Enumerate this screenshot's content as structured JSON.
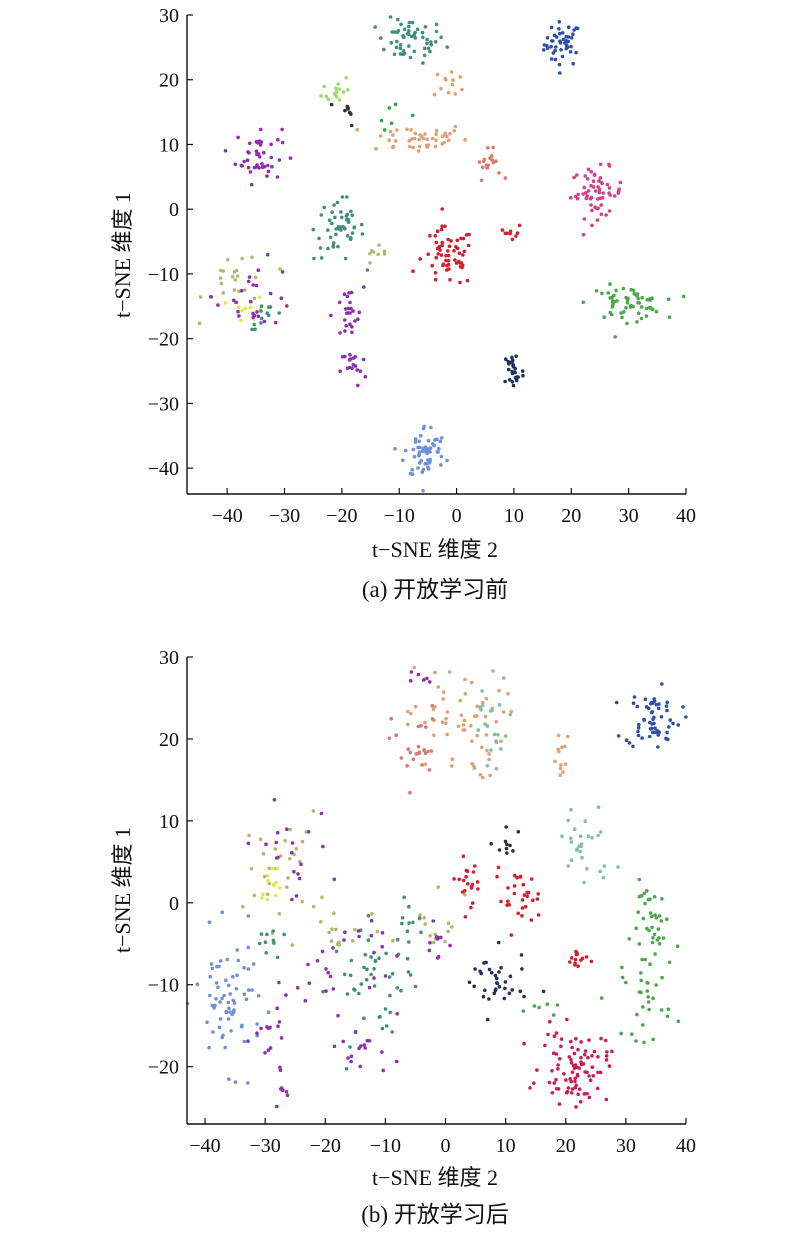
{
  "colors": {
    "red": "#d4202e",
    "crimson": "#cc1d52",
    "pink": "#d33f8e",
    "purple": "#8e2fae",
    "blue": "#2f4fa6",
    "cornflower": "#6f8fd9",
    "navy": "#1f2f5f",
    "green": "#4aa84a",
    "teal": "#3f8f7a",
    "mint": "#7fc0a0",
    "orange": "#e0a070",
    "salmon": "#d97a6a",
    "olive": "#b6b66a",
    "lightgreen": "#9ed86a",
    "yellow": "#e6e645",
    "dark": "#303030",
    "brightgreen": "#23b03a"
  },
  "chart_data": [
    {
      "type": "scatter",
      "caption": "(a) 开放学习前",
      "xlabel": "t−SNE 维度 2",
      "ylabel": "t−SNE 维度 1",
      "xlim": [
        -47,
        40
      ],
      "ylim": [
        -44,
        30
      ],
      "xticks": [
        "−40",
        "−30",
        "−20",
        "−10",
        "0",
        "10",
        "20",
        "30",
        "40"
      ],
      "yticks": [
        "30",
        "20",
        "10",
        "0",
        "−10",
        "−20",
        "−30",
        "−40"
      ],
      "xtick_values": [
        -40,
        -30,
        -20,
        -10,
        0,
        10,
        20,
        30,
        40
      ],
      "ytick_values": [
        30,
        20,
        10,
        0,
        -10,
        -20,
        -30,
        -40
      ],
      "clusters": [
        {
          "color": "blue",
          "cx": 18.5,
          "cy": 25.5,
          "sx": 1.6,
          "sy": 1.7,
          "n": 45
        },
        {
          "color": "teal",
          "cx": -8,
          "cy": 26,
          "sx": 3.0,
          "sy": 1.7,
          "n": 55
        },
        {
          "color": "orange",
          "cx": -1,
          "cy": 19.5,
          "sx": 1.5,
          "sy": 1.2,
          "n": 12
        },
        {
          "color": "orange",
          "cx": -7,
          "cy": 11,
          "sx": 4.5,
          "sy": 1.2,
          "n": 45
        },
        {
          "color": "lightgreen",
          "cx": -21,
          "cy": 18.5,
          "sx": 1.2,
          "sy": 1.2,
          "n": 15
        },
        {
          "color": "dark",
          "cx": -19,
          "cy": 15,
          "sx": 0.8,
          "sy": 1.0,
          "n": 8
        },
        {
          "color": "brightgreen",
          "cx": -11,
          "cy": 15,
          "sx": 1.5,
          "sy": 1.3,
          "n": 6
        },
        {
          "color": "salmon",
          "cx": 5.5,
          "cy": 7,
          "sx": 1.1,
          "sy": 1.1,
          "n": 18
        },
        {
          "color": "purple",
          "cx": -34.5,
          "cy": 8.5,
          "sx": 2.0,
          "sy": 2.2,
          "n": 45
        },
        {
          "color": "pink",
          "cx": 24.5,
          "cy": 2.5,
          "sx": 2.3,
          "sy": 1.9,
          "n": 60
        },
        {
          "color": "teal",
          "cx": -20.5,
          "cy": -3,
          "sx": 2.2,
          "sy": 2.5,
          "n": 50
        },
        {
          "color": "red",
          "cx": -1.5,
          "cy": -7.5,
          "sx": 2.3,
          "sy": 2.3,
          "n": 60
        },
        {
          "color": "red",
          "cx": 9.5,
          "cy": -3.5,
          "sx": 1.0,
          "sy": 0.7,
          "n": 10
        },
        {
          "color": "olive",
          "cx": -14,
          "cy": -7.5,
          "sx": 1.5,
          "sy": 0.8,
          "n": 8
        },
        {
          "color": "olive",
          "cx": -38,
          "cy": -11,
          "sx": 3.0,
          "sy": 2.6,
          "n": 22
        },
        {
          "color": "yellow",
          "cx": -36,
          "cy": -15.5,
          "sx": 1.5,
          "sy": 1.0,
          "n": 12
        },
        {
          "color": "purple",
          "cx": -35,
          "cy": -13,
          "sx": 3.5,
          "sy": 2.5,
          "n": 25
        },
        {
          "color": "teal",
          "cx": -33,
          "cy": -16.5,
          "sx": 1.6,
          "sy": 1.0,
          "n": 12
        },
        {
          "color": "green",
          "cx": 29.5,
          "cy": -14.5,
          "sx": 3.2,
          "sy": 1.3,
          "n": 60
        },
        {
          "color": "purple",
          "cx": -19,
          "cy": -16.5,
          "sx": 1.4,
          "sy": 2.2,
          "n": 25
        },
        {
          "color": "purple",
          "cx": -18,
          "cy": -24.5,
          "sx": 1.1,
          "sy": 1.5,
          "n": 18
        },
        {
          "color": "navy",
          "cx": 10,
          "cy": -25,
          "sx": 0.9,
          "sy": 1.7,
          "n": 28
        },
        {
          "color": "cornflower",
          "cx": -5.5,
          "cy": -37.5,
          "sx": 1.8,
          "sy": 2.1,
          "n": 60
        }
      ]
    },
    {
      "type": "scatter",
      "caption": "(b) 开放学习后",
      "xlabel": "t−SNE 维度 2",
      "ylabel": "t−SNE 维度 1",
      "xlim": [
        -43,
        40
      ],
      "ylim": [
        -27,
        30
      ],
      "xticks": [
        "−40",
        "−30",
        "−20",
        "−10",
        "0",
        "10",
        "20",
        "30",
        "40"
      ],
      "yticks": [
        "30",
        "20",
        "10",
        "0",
        "−10",
        "−20"
      ],
      "xtick_values": [
        -40,
        -30,
        -20,
        -10,
        0,
        10,
        20,
        30,
        40
      ],
      "ytick_values": [
        30,
        20,
        10,
        0,
        -10,
        -20
      ],
      "clusters": [
        {
          "color": "blue",
          "cx": 34.5,
          "cy": 22.5,
          "sx": 2.3,
          "sy": 1.8,
          "n": 60
        },
        {
          "color": "orange",
          "cx": 1.5,
          "cy": 22,
          "sx": 4.0,
          "sy": 3.5,
          "n": 65
        },
        {
          "color": "salmon",
          "cx": -5,
          "cy": 19,
          "sx": 2.0,
          "sy": 2.5,
          "n": 25
        },
        {
          "color": "mint",
          "cx": 8,
          "cy": 21,
          "sx": 2.0,
          "sy": 3.0,
          "n": 20
        },
        {
          "color": "purple",
          "cx": -4,
          "cy": 27,
          "sx": 0.8,
          "sy": 0.8,
          "n": 6
        },
        {
          "color": "orange",
          "cx": 19.5,
          "cy": 17,
          "sx": 1.0,
          "sy": 1.8,
          "n": 12
        },
        {
          "color": "mint",
          "cx": 23,
          "cy": 7,
          "sx": 2.5,
          "sy": 2.8,
          "n": 28
        },
        {
          "color": "olive",
          "cx": -27,
          "cy": 4,
          "sx": 3.0,
          "sy": 3.5,
          "n": 30
        },
        {
          "color": "yellow",
          "cx": -29,
          "cy": 2.5,
          "sx": 1.0,
          "sy": 1.0,
          "n": 12
        },
        {
          "color": "purple",
          "cx": -26,
          "cy": 6,
          "sx": 3.5,
          "sy": 3.0,
          "n": 20
        },
        {
          "color": "dark",
          "cx": 10,
          "cy": 6.5,
          "sx": 0.8,
          "sy": 1.8,
          "n": 10
        },
        {
          "color": "red",
          "cx": 4,
          "cy": 3,
          "sx": 1.5,
          "sy": 1.5,
          "n": 20
        },
        {
          "color": "red",
          "cx": 12,
          "cy": 0.5,
          "sx": 2.0,
          "sy": 1.7,
          "n": 30
        },
        {
          "color": "green",
          "cx": 35,
          "cy": -3,
          "sx": 2.0,
          "sy": 2.8,
          "n": 40
        },
        {
          "color": "green",
          "cx": 33.5,
          "cy": -12,
          "sx": 2.0,
          "sy": 2.3,
          "n": 28
        },
        {
          "color": "teal",
          "cx": -12,
          "cy": -10,
          "sx": 3.5,
          "sy": 3.5,
          "n": 45
        },
        {
          "color": "olive",
          "cx": -17,
          "cy": -4,
          "sx": 3.0,
          "sy": 2.0,
          "n": 15
        },
        {
          "color": "purple",
          "cx": -18,
          "cy": -8,
          "sx": 5.0,
          "sy": 4.0,
          "n": 30
        },
        {
          "color": "purple",
          "cx": -13,
          "cy": -18.5,
          "sx": 1.8,
          "sy": 1.2,
          "n": 14
        },
        {
          "color": "cornflower",
          "cx": -36,
          "cy": -12,
          "sx": 2.8,
          "sy": 4.0,
          "n": 70
        },
        {
          "color": "purple",
          "cx": -29,
          "cy": -17,
          "sx": 1.5,
          "sy": 2.5,
          "n": 16
        },
        {
          "color": "purple",
          "cx": -27,
          "cy": -23.5,
          "sx": 0.9,
          "sy": 1.0,
          "n": 6
        },
        {
          "color": "navy",
          "cx": 8,
          "cy": -10,
          "sx": 2.8,
          "sy": 2.0,
          "n": 35
        },
        {
          "color": "red",
          "cx": 22,
          "cy": -7,
          "sx": 1.0,
          "sy": 0.8,
          "n": 14
        },
        {
          "color": "crimson",
          "cx": 21.5,
          "cy": -20,
          "sx": 2.8,
          "sy": 2.2,
          "n": 90
        },
        {
          "color": "olive",
          "cx": -1,
          "cy": -2,
          "sx": 2.0,
          "sy": 2.5,
          "n": 14
        },
        {
          "color": "purple",
          "cx": -1.5,
          "cy": -4.5,
          "sx": 1.5,
          "sy": 1.5,
          "n": 10
        },
        {
          "color": "teal",
          "cx": -6,
          "cy": -3,
          "sx": 1.5,
          "sy": 2.5,
          "n": 12
        },
        {
          "color": "green",
          "cx": 16,
          "cy": -12,
          "sx": 1.2,
          "sy": 0.8,
          "n": 6
        },
        {
          "color": "teal",
          "cx": -30,
          "cy": -6,
          "sx": 1.5,
          "sy": 2.0,
          "n": 10
        }
      ]
    }
  ]
}
